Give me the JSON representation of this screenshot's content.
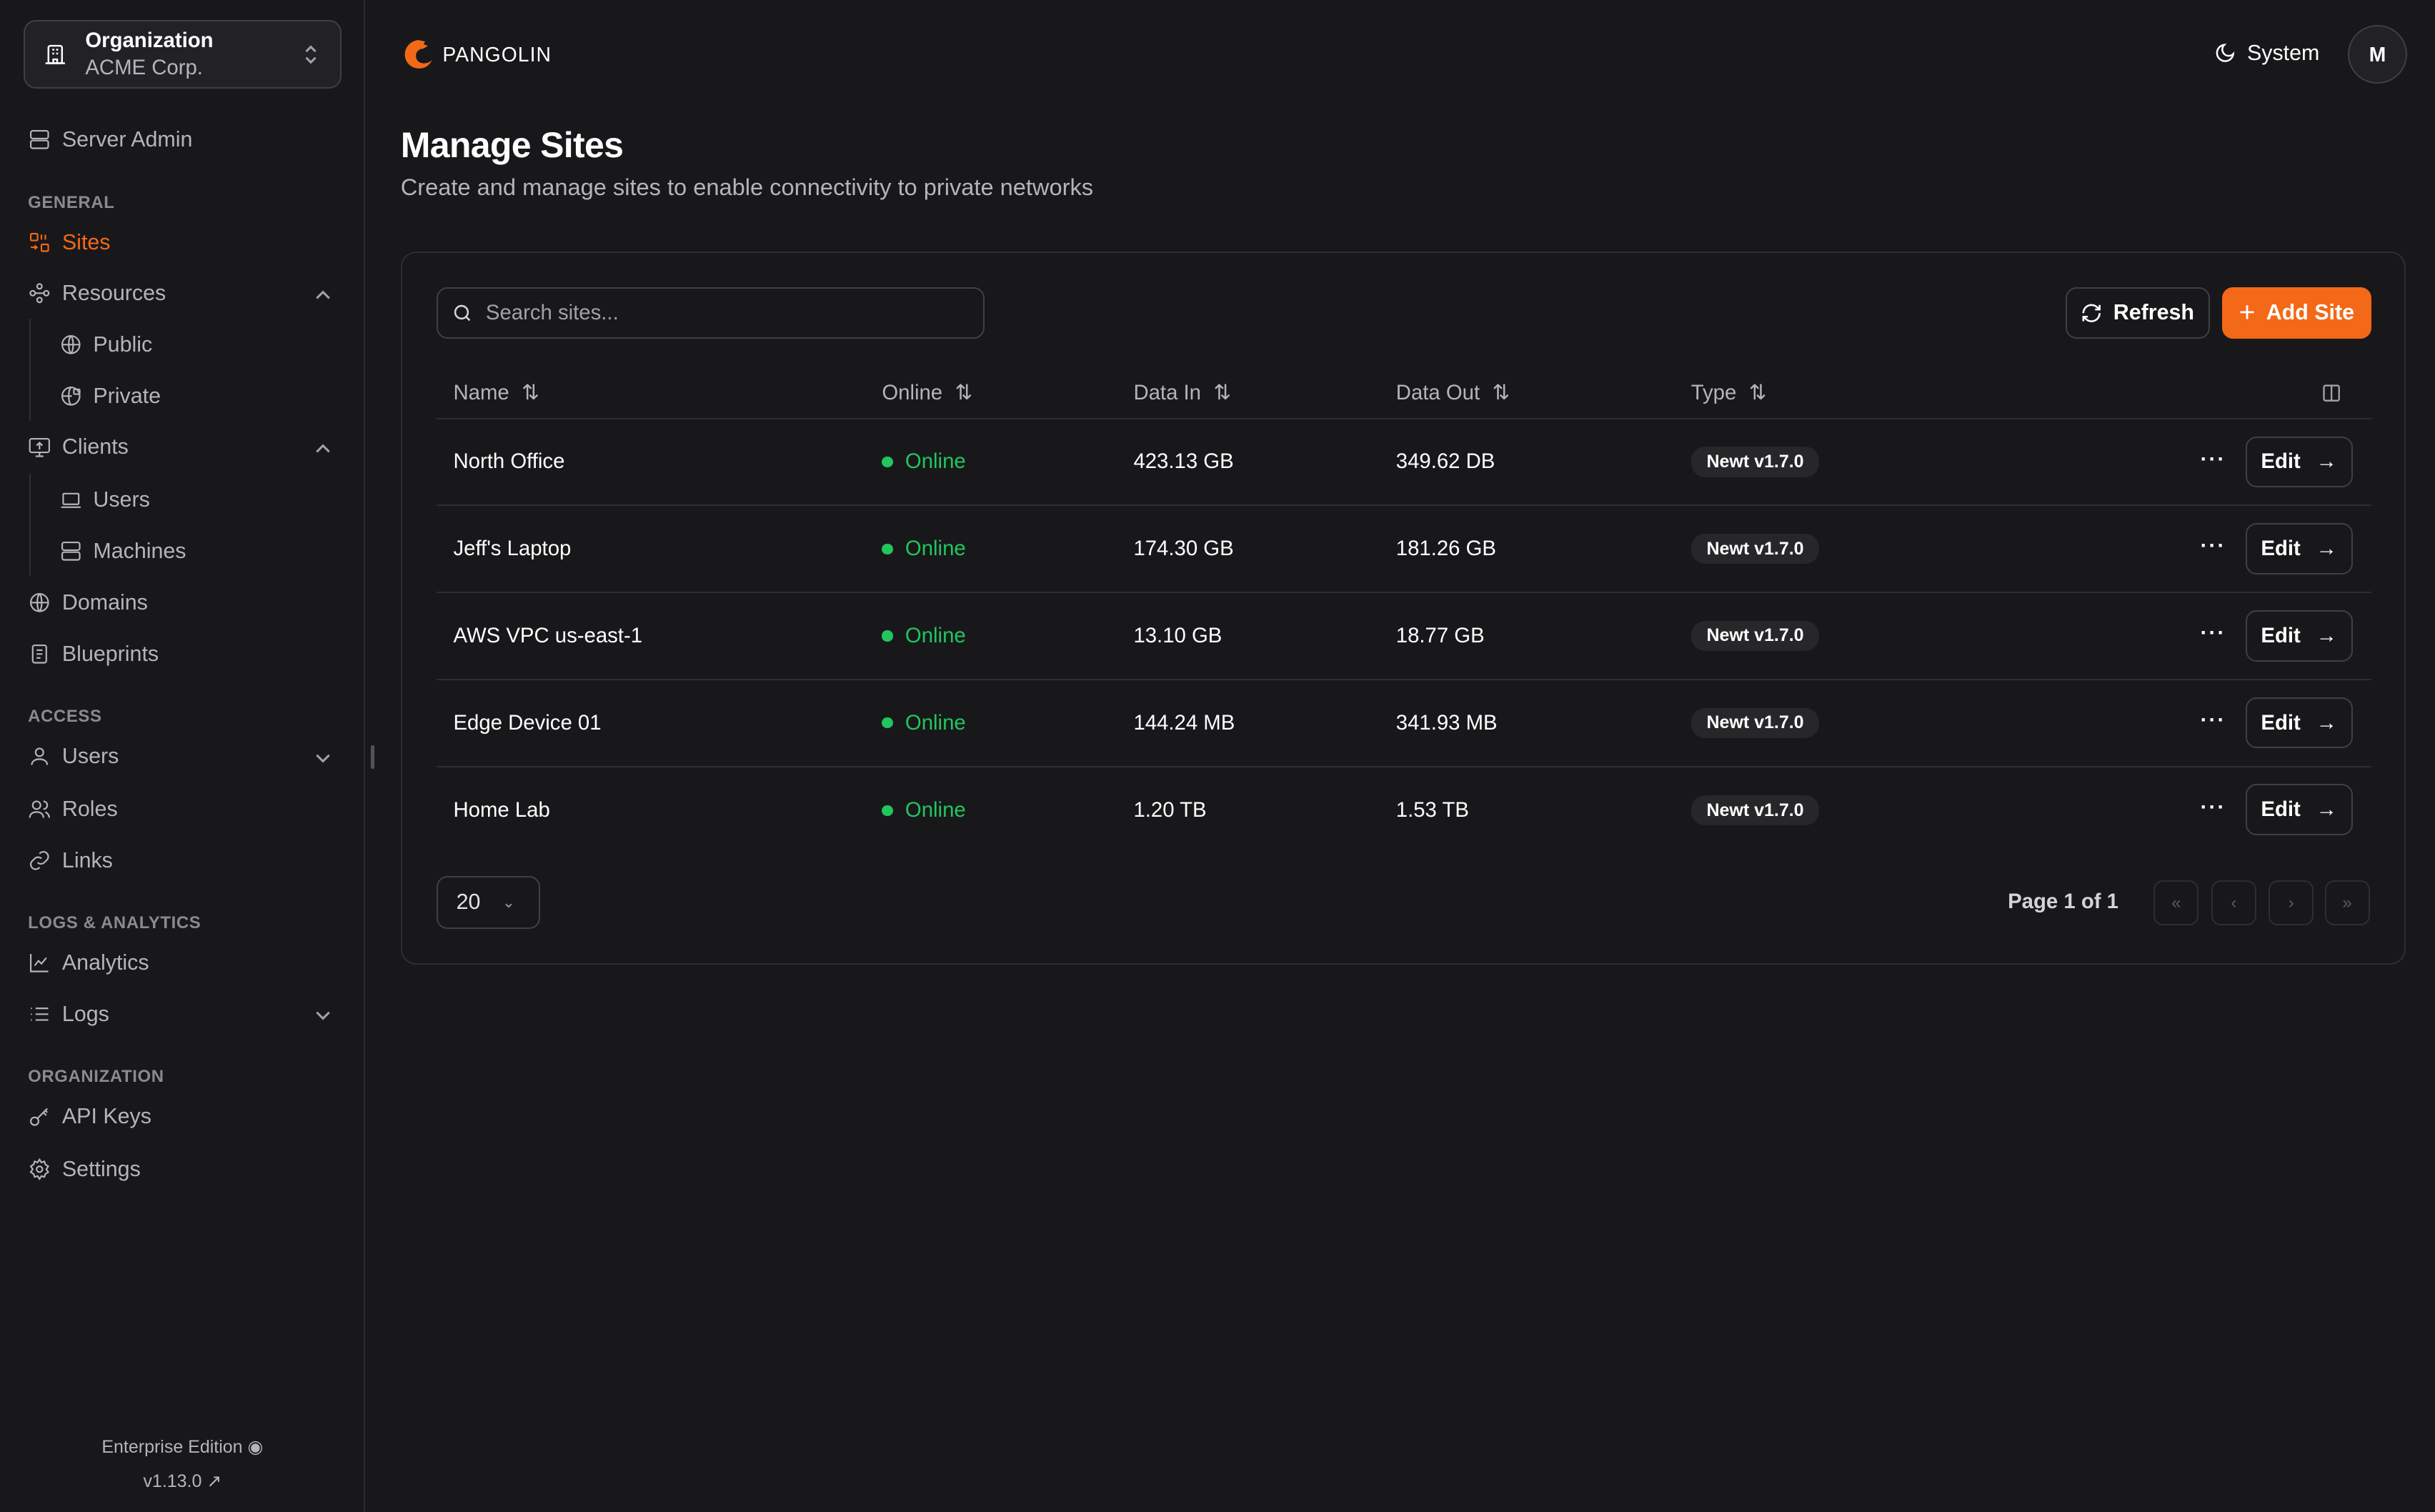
{
  "org": {
    "label": "Organization",
    "name": "ACME Corp."
  },
  "sidebar": {
    "server_admin": "Server Admin",
    "sections": {
      "general": "GENERAL",
      "access": "ACCESS",
      "logs": "LOGS & ANALYTICS",
      "organization": "ORGANIZATION"
    },
    "items": {
      "sites": "Sites",
      "resources": "Resources",
      "public": "Public",
      "private": "Private",
      "clients": "Clients",
      "users": "Users",
      "machines": "Machines",
      "domains": "Domains",
      "blueprints": "Blueprints",
      "access_users": "Users",
      "roles": "Roles",
      "links": "Links",
      "analytics": "Analytics",
      "logs": "Logs",
      "api_keys": "API Keys",
      "settings": "Settings"
    },
    "edition": "Enterprise Edition",
    "version": "v1.13.0"
  },
  "header": {
    "brand": "PANGOLIN",
    "theme": "System",
    "avatar": "M"
  },
  "page": {
    "title": "Manage Sites",
    "subtitle": "Create and manage sites to enable connectivity to private networks"
  },
  "toolbar": {
    "search_placeholder": "Search sites...",
    "refresh": "Refresh",
    "add": "Add Site"
  },
  "table": {
    "columns": [
      "Name",
      "Online",
      "Data In",
      "Data Out",
      "Type"
    ],
    "rows": [
      {
        "name": "North Office",
        "status": "Online",
        "data_in": "423.13 GB",
        "data_out": "349.62 DB",
        "type": "Newt v1.7.0"
      },
      {
        "name": "Jeff's Laptop",
        "status": "Online",
        "data_in": "174.30 GB",
        "data_out": "181.26 GB",
        "type": "Newt v1.7.0"
      },
      {
        "name": "AWS VPC us-east-1",
        "status": "Online",
        "data_in": "13.10 GB",
        "data_out": "18.77 GB",
        "type": "Newt v1.7.0"
      },
      {
        "name": "Edge Device 01",
        "status": "Online",
        "data_in": "144.24 MB",
        "data_out": "341.93 MB",
        "type": "Newt v1.7.0"
      },
      {
        "name": "Home Lab",
        "status": "Online",
        "data_in": "1.20 TB",
        "data_out": "1.53 TB",
        "type": "Newt v1.7.0"
      }
    ],
    "edit_label": "Edit"
  },
  "pagination": {
    "page_size": "20",
    "page_text": "Page 1 of 1"
  },
  "colors": {
    "accent": "#f36917",
    "online": "#22c55e",
    "background": "#18181b"
  }
}
